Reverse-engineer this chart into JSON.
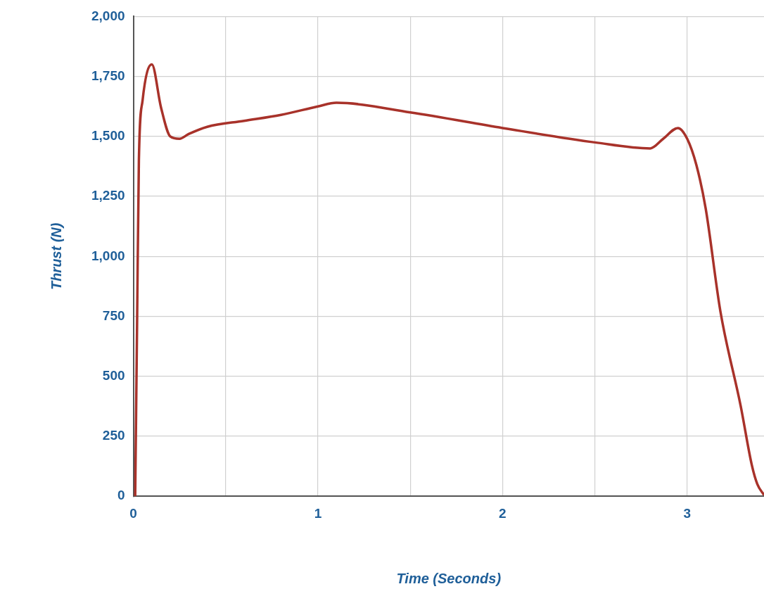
{
  "chart_data": {
    "type": "line",
    "xlabel": "Time (Seconds)",
    "ylabel": "Thrust (N)",
    "series": [
      {
        "color": "#a8322a",
        "x": [
          0.01,
          0.02,
          0.03,
          0.05,
          0.1,
          0.15,
          0.2,
          0.25,
          0.3,
          0.4,
          0.6,
          0.8,
          1.0,
          1.1,
          1.5,
          2.0,
          2.5,
          2.8,
          2.87,
          2.95,
          3.0,
          3.05,
          3.1,
          3.18,
          3.29,
          3.35,
          3.38,
          3.416
        ],
        "values": [
          0,
          700,
          1400,
          1650,
          1800,
          1620,
          1500,
          1490,
          1510,
          1540,
          1565,
          1590,
          1625,
          1640,
          1600,
          1535,
          1475,
          1450,
          1490,
          1535,
          1490,
          1380,
          1200,
          770,
          375,
          130,
          50,
          5
        ]
      }
    ],
    "xlim": [
      0,
      3.416
    ],
    "xticks": [
      0,
      {
        "value": 0.5,
        "label": null
      },
      1,
      {
        "value": 1.5,
        "label": null
      },
      2,
      {
        "value": 2.5,
        "label": null
      },
      3
    ],
    "ylim": [
      0,
      2000
    ],
    "yticks": [
      0,
      250,
      500,
      750,
      {
        "value": 1000,
        "label": "1,000"
      },
      {
        "value": 1250,
        "label": "1,250"
      },
      {
        "value": 1500,
        "label": "1,500"
      },
      {
        "value": 1750,
        "label": "1,750"
      },
      {
        "value": 2000,
        "label": "2,000"
      }
    ],
    "grid": true,
    "legend": false,
    "marker": "none",
    "line_style": "solid"
  }
}
